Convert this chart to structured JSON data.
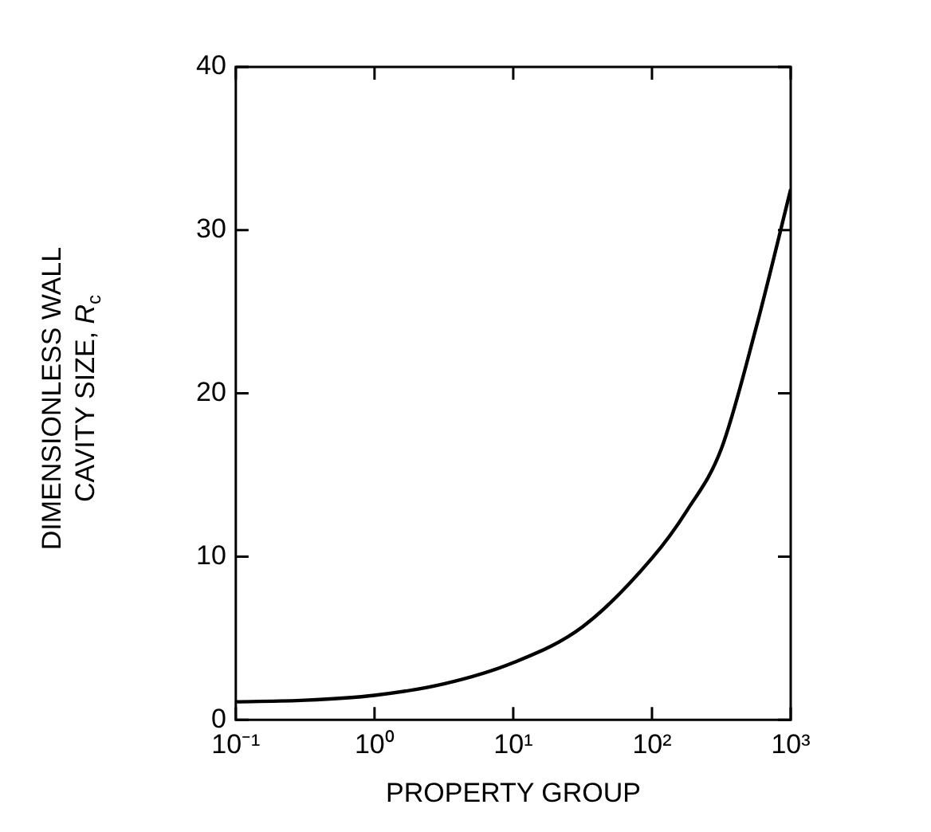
{
  "chart_data": {
    "type": "line",
    "xlabel": "PROPERTY GROUP",
    "ylabel": "DIMENSIONLESS WALL CAVITY SIZE, R$_{c}$",
    "x": [
      0.1,
      0.316,
      1,
      3.16,
      10,
      31.6,
      100,
      178,
      316,
      562,
      1000
    ],
    "series": [
      {
        "color": "#000000",
        "values": [
          1.1,
          1.2,
          1.5,
          2.2,
          3.5,
          5.7,
          9.9,
          12.8,
          16.6,
          24,
          32.5
        ]
      }
    ],
    "log": "x",
    "xlim": [
      0.1,
      1000
    ],
    "xticks": [
      {
        "value": 0.1,
        "label": "10⁻¹"
      },
      {
        "value": 1,
        "label": "10⁰"
      },
      {
        "value": 10,
        "label": "10¹"
      },
      {
        "value": 100,
        "label": "10²"
      },
      {
        "value": 1000,
        "label": "10³"
      }
    ],
    "ylim": [
      0,
      40
    ],
    "yticks": [
      0,
      10,
      20,
      30,
      40
    ],
    "grid": false,
    "legend": false,
    "marker": "none",
    "line_style": "solid"
  }
}
